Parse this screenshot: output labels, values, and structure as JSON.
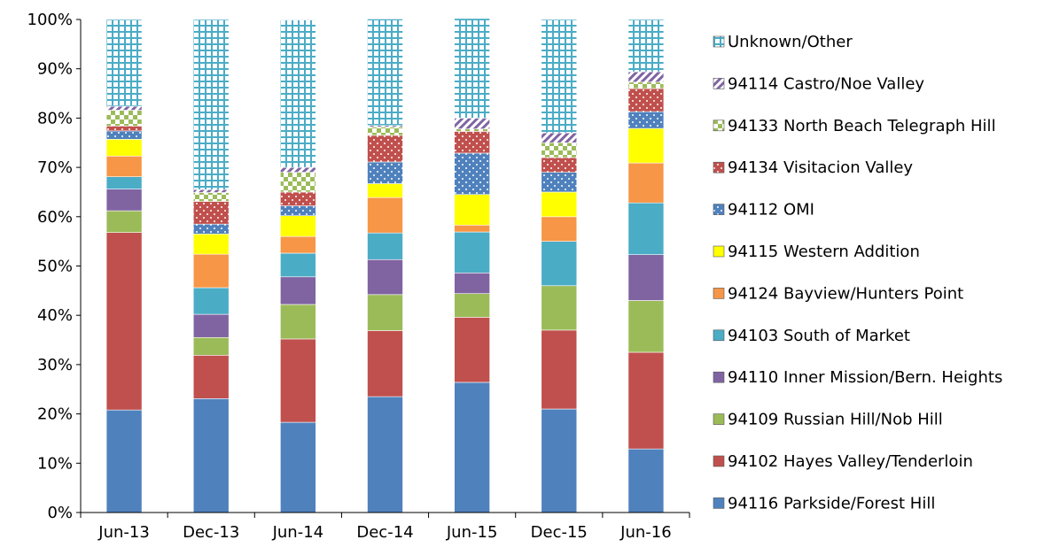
{
  "chart_data": {
    "type": "bar",
    "stacked": true,
    "percent": true,
    "title": "",
    "xlabel": "",
    "ylabel": "",
    "ylim": [
      0,
      100
    ],
    "yticks": [
      "0%",
      "10%",
      "20%",
      "30%",
      "40%",
      "50%",
      "60%",
      "70%",
      "80%",
      "90%",
      "100%"
    ],
    "categories": [
      "Jun-13",
      "Dec-13",
      "Jun-14",
      "Dec-14",
      "Jun-15",
      "Dec-15",
      "Jun-16"
    ],
    "legend_position": "right",
    "grid": false,
    "series": [
      {
        "name": "94116 Parkside/Forest Hill",
        "color": "#4f81bd",
        "pattern": "solid",
        "values": [
          20.8,
          23.1,
          18.3,
          23.5,
          26.4,
          21.0,
          12.9
        ]
      },
      {
        "name": "94102 Hayes Valley/Tenderloin",
        "color": "#c0504d",
        "pattern": "solid",
        "values": [
          36.0,
          8.8,
          16.9,
          13.4,
          13.2,
          16.0,
          19.6
        ]
      },
      {
        "name": "94109 Russian Hill/Nob Hill",
        "color": "#9bbb59",
        "pattern": "solid",
        "values": [
          4.4,
          3.6,
          7.0,
          7.3,
          4.8,
          9.0,
          10.5
        ]
      },
      {
        "name": "94110 Inner Mission/Bern. Heights",
        "color": "#8064a2",
        "pattern": "solid",
        "values": [
          4.4,
          4.7,
          5.6,
          7.1,
          4.2,
          0.0,
          9.3
        ]
      },
      {
        "name": "94103 South of Market",
        "color": "#4bacc6",
        "pattern": "solid",
        "values": [
          2.5,
          5.4,
          4.8,
          5.4,
          8.3,
          9.0,
          10.5
        ]
      },
      {
        "name": "94124 Bayview/Hunters Point",
        "color": "#f79646",
        "pattern": "solid",
        "values": [
          4.2,
          6.8,
          3.4,
          7.2,
          1.4,
          5.0,
          8.1
        ]
      },
      {
        "name": "94115 Western Addition",
        "color": "#ffff00",
        "pattern": "solid",
        "values": [
          3.4,
          4.1,
          4.2,
          2.8,
          6.2,
          5.0,
          7.0
        ]
      },
      {
        "name": "94112 OMI",
        "color": "#4f81bd",
        "pattern": "dots",
        "values": [
          1.7,
          2.0,
          2.0,
          4.4,
          8.4,
          4.0,
          3.4
        ]
      },
      {
        "name": "94134 Visitacion Valley",
        "color": "#c0504d",
        "pattern": "dots",
        "values": [
          1.0,
          4.6,
          2.8,
          5.4,
          4.4,
          3.0,
          4.7
        ]
      },
      {
        "name": "94133 North Beach Telegraph Hill",
        "color": "#9bbb59",
        "pattern": "checker",
        "values": [
          3.2,
          1.8,
          4.0,
          1.7,
          0.5,
          3.0,
          1.3
        ]
      },
      {
        "name": "94114 Castro/Noe Valley",
        "color": "#8064a2",
        "pattern": "diagonal",
        "values": [
          0.8,
          0.6,
          1.0,
          0.3,
          2.2,
          2.0,
          2.1
        ]
      },
      {
        "name": "Unknown/Other",
        "color": "#4bacc6",
        "pattern": "grid",
        "values": [
          17.6,
          34.5,
          29.9,
          21.6,
          20.2,
          23.0,
          10.6
        ]
      }
    ]
  }
}
